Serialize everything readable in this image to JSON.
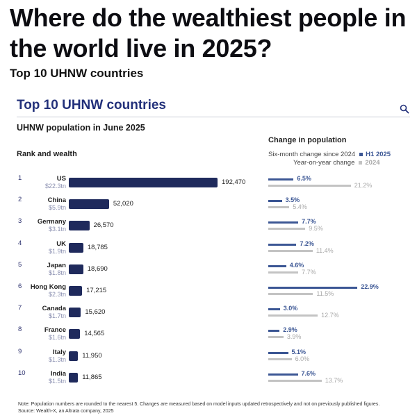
{
  "page": {
    "headline": "Where do the wealthiest people in the world live in 2025?",
    "subhead": "Top 10 UHNW countries"
  },
  "card": {
    "title": "Top 10 UHNW countries",
    "subtitle": "UHNW population in June 2025",
    "rank_header": "Rank and wealth",
    "change_header": "Change in population",
    "note": "Note: Population numbers are rounded to the nearest 5. Changes are measured based on model inputs updated retrospectively and not on previously published figures.",
    "source": "Source: Wealth-X, an Altrata company, 2025"
  },
  "colors": {
    "bar": "#1f2a5c",
    "h1": "#3b5694",
    "yoy": "#c3c3c3",
    "title": "#22307a"
  },
  "chart_data": {
    "type": "bar",
    "title": "Top 10 UHNW countries",
    "subtitle": "UHNW population in June 2025",
    "categories": [
      "US",
      "China",
      "Germany",
      "UK",
      "Japan",
      "Hong Kong",
      "Canada",
      "France",
      "Italy",
      "India"
    ],
    "ranks": [
      "1",
      "2",
      "3",
      "4",
      "5",
      "6",
      "7",
      "8",
      "9",
      "10"
    ],
    "wealth": [
      "$22.3tn",
      "$5.9tn",
      "$3.1tn",
      "$1.9tn",
      "$1.8tn",
      "$2.3tn",
      "$1.7tn",
      "$1.6tn",
      "$1.3tn",
      "$1.5tn"
    ],
    "values": [
      192470,
      52020,
      26570,
      18785,
      18690,
      17215,
      15620,
      14565,
      11950,
      11865
    ],
    "value_labels": [
      "192,470",
      "52,020",
      "26,570",
      "18,785",
      "18,690",
      "17,215",
      "15,620",
      "14,565",
      "11,950",
      "11,865"
    ],
    "change": {
      "title": "Change in population",
      "legend": [
        {
          "label": "Six-month change since 2024",
          "series": "H1 2025"
        },
        {
          "label": "Year-on-year change",
          "series": "2024"
        }
      ],
      "series": [
        {
          "name": "H1 2025",
          "values": [
            6.5,
            3.5,
            7.7,
            7.2,
            4.6,
            22.9,
            3.0,
            2.9,
            5.1,
            7.6
          ],
          "labels": [
            "6.5%",
            "3.5%",
            "7.7%",
            "7.2%",
            "4.6%",
            "22.9%",
            "3.0%",
            "2.9%",
            "5.1%",
            "7.6%"
          ]
        },
        {
          "name": "2024",
          "values": [
            21.2,
            5.4,
            9.5,
            11.4,
            7.7,
            11.5,
            12.7,
            3.9,
            6.0,
            13.7
          ],
          "labels": [
            "21.2%",
            "5.4%",
            "9.5%",
            "11.4%",
            "7.7%",
            "11.5%",
            "12.7%",
            "3.9%",
            "6.0%",
            "13.7%"
          ]
        }
      ]
    }
  }
}
